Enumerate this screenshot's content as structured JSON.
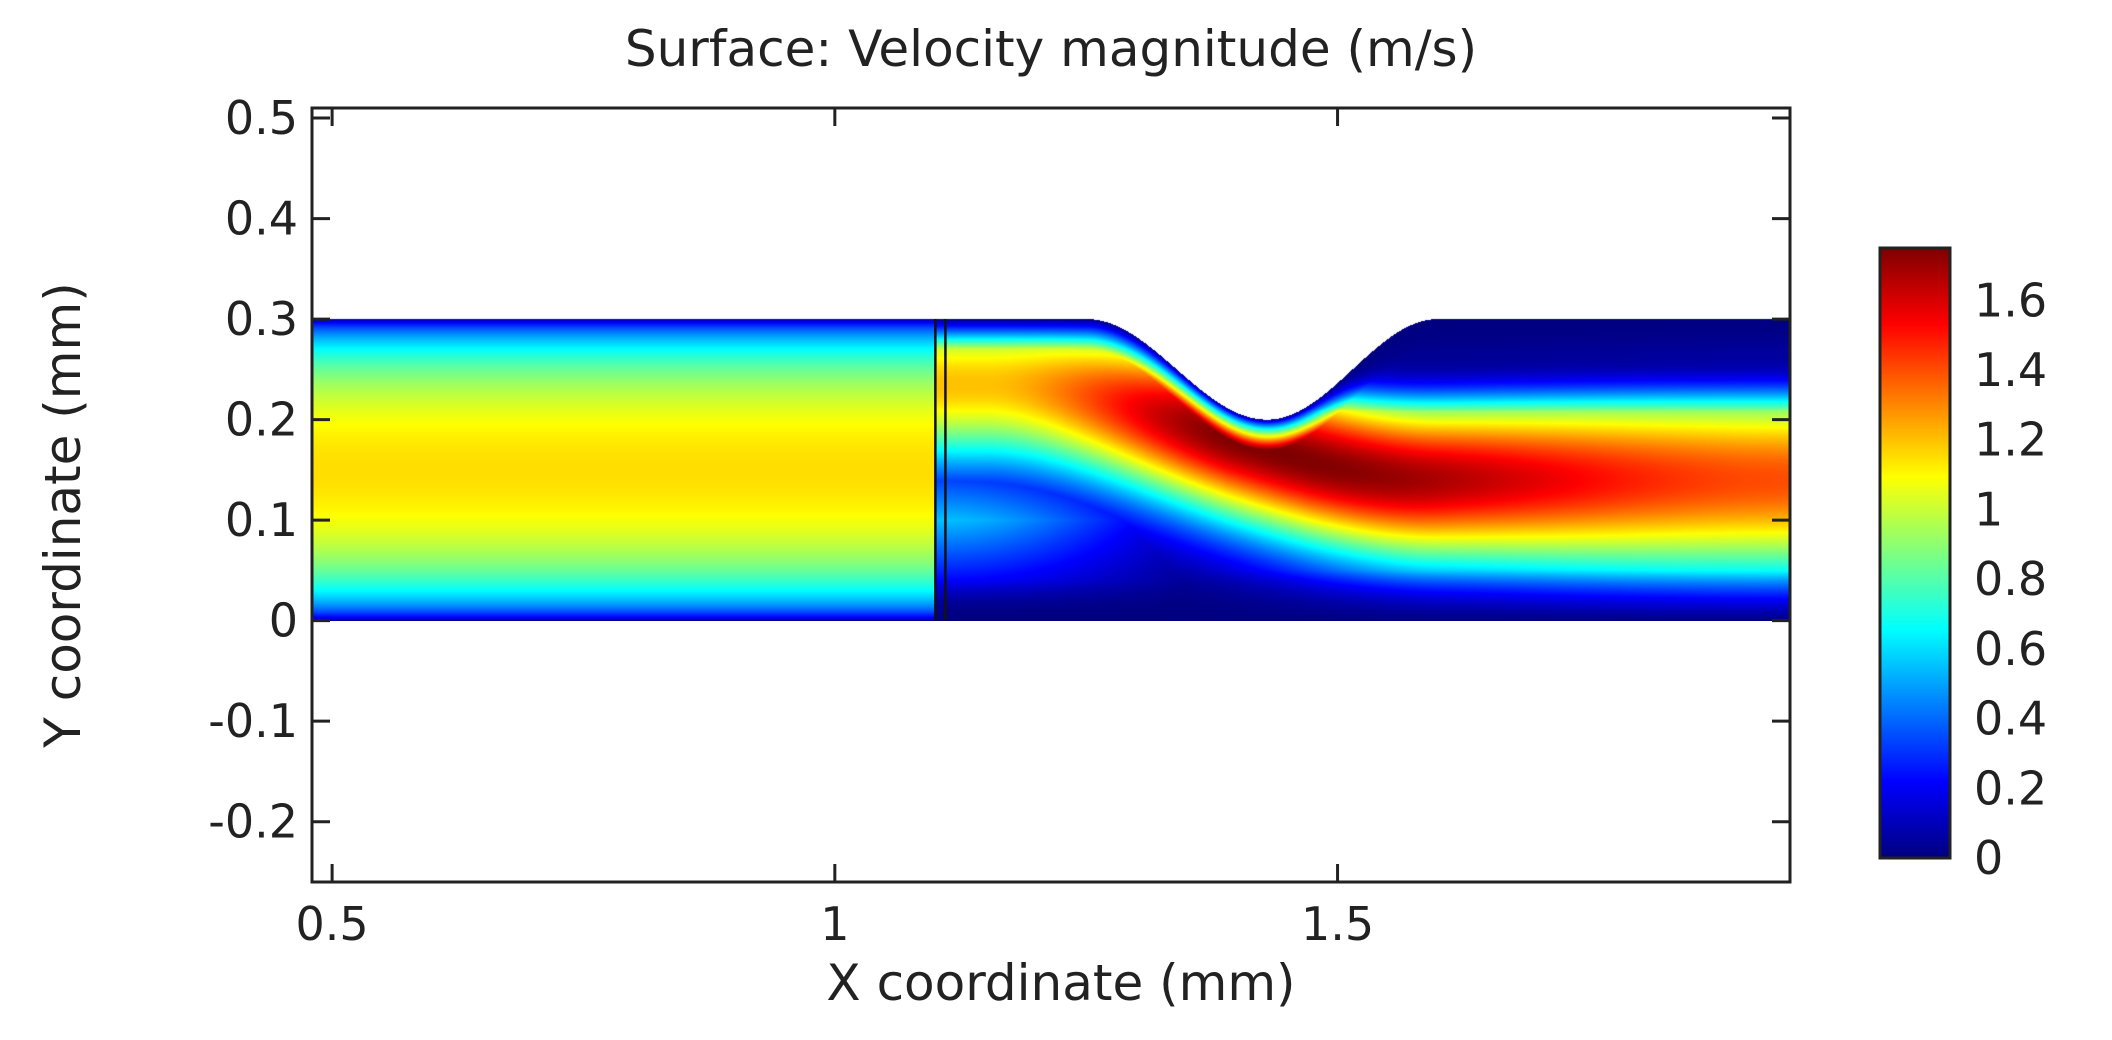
{
  "chart_data": {
    "type": "heatmap",
    "title": "Surface: Velocity magnitude (m/s)",
    "xlabel": "X coordinate (mm)",
    "ylabel": "Y coordinate (mm)",
    "xlim": [
      0.48,
      1.95
    ],
    "ylim": [
      -0.26,
      0.51
    ],
    "x_ticks": [
      {
        "value": 0.5,
        "label": "0.5"
      },
      {
        "value": 1.0,
        "label": "1"
      },
      {
        "value": 1.5,
        "label": "1.5"
      }
    ],
    "y_ticks": [
      {
        "value": 0.5,
        "label": "0.5"
      },
      {
        "value": 0.4,
        "label": "0.4"
      },
      {
        "value": 0.3,
        "label": "0.3"
      },
      {
        "value": 0.2,
        "label": "0.2"
      },
      {
        "value": 0.1,
        "label": "0.1"
      },
      {
        "value": 0.0,
        "label": "0"
      },
      {
        "value": -0.1,
        "label": "-0.1"
      },
      {
        "value": -0.2,
        "label": "-0.2"
      }
    ],
    "colorbar": {
      "range": [
        0,
        1.75
      ],
      "colormap": "jet",
      "ticks": [
        {
          "value": 0,
          "label": "0"
        },
        {
          "value": 0.2,
          "label": "0.2"
        },
        {
          "value": 0.4,
          "label": "0.4"
        },
        {
          "value": 0.6,
          "label": "0.6"
        },
        {
          "value": 0.8,
          "label": "0.8"
        },
        {
          "value": 1.0,
          "label": "1"
        },
        {
          "value": 1.2,
          "label": "1.2"
        },
        {
          "value": 1.4,
          "label": "1.4"
        },
        {
          "value": 1.6,
          "label": "1.6"
        }
      ]
    },
    "domain": {
      "channel_x_range": [
        0.48,
        1.95
      ],
      "channel_y_range": [
        0.0,
        0.3
      ],
      "inlet_velocity_peak": 1.15,
      "wall_marker_x": [
        1.1,
        1.11
      ],
      "constriction": {
        "start_x": 1.25,
        "throat_x": 1.43,
        "throat_y": 0.2,
        "end_x": 1.6
      },
      "max_velocity_location": {
        "x": 1.41,
        "y": 0.16,
        "value": 1.75
      }
    },
    "colors": {
      "jet_stops": [
        "#00007f",
        "#0000ff",
        "#007fff",
        "#00ffff",
        "#7fff7f",
        "#ffff00",
        "#ff7f00",
        "#ff0000",
        "#7f0000"
      ],
      "axis": "#222222",
      "background": "#ffffff"
    }
  }
}
